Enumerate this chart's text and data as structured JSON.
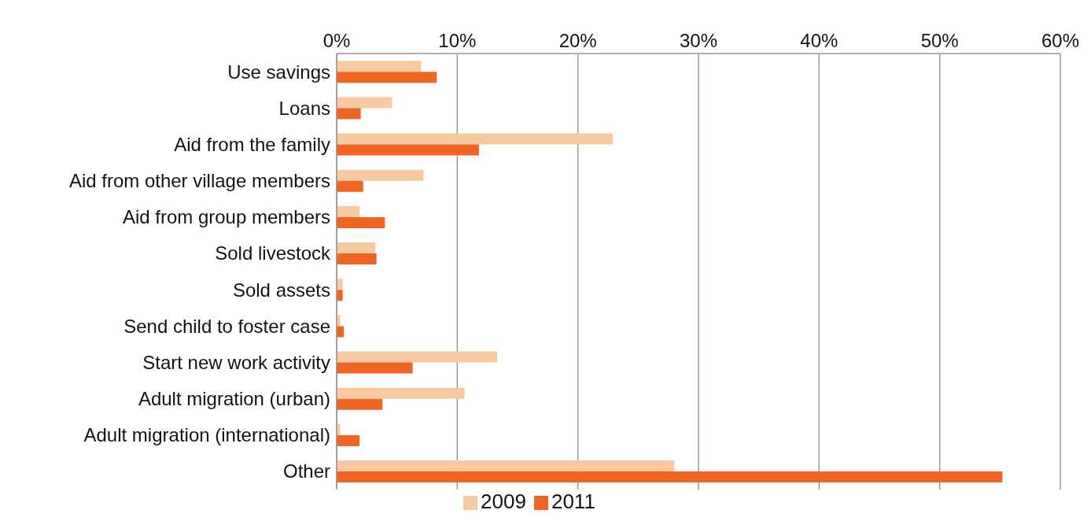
{
  "chart_data": {
    "type": "bar",
    "orientation": "horizontal",
    "categories": [
      "Use savings",
      "Loans",
      "Aid from the family",
      "Aid from other village members",
      "Aid from group members",
      "Sold livestock",
      "Sold assets",
      "Send child to foster case",
      "Start new work activity",
      "Adult migration (urban)",
      "Adult migration (international)",
      "Other"
    ],
    "series": [
      {
        "name": "2009",
        "color": "#f6c9a0",
        "values": [
          7.0,
          4.6,
          22.9,
          7.2,
          1.9,
          3.2,
          0.5,
          0.3,
          13.3,
          10.6,
          0.3,
          28.0
        ]
      },
      {
        "name": "2011",
        "color": "#f06522",
        "values": [
          8.3,
          2.0,
          11.8,
          2.2,
          4.0,
          3.3,
          0.5,
          0.6,
          6.3,
          3.8,
          1.9,
          55.2
        ]
      }
    ],
    "xlim": [
      0,
      60
    ],
    "xticks": [
      {
        "value": 0,
        "label": "0%"
      },
      {
        "value": 10,
        "label": "10%"
      },
      {
        "value": 20,
        "label": "20%"
      },
      {
        "value": 30,
        "label": "30%"
      },
      {
        "value": 40,
        "label": "40%"
      },
      {
        "value": 50,
        "label": "50%"
      },
      {
        "value": 60,
        "label": "60%"
      }
    ],
    "grid": "x",
    "legend": "bottom"
  }
}
